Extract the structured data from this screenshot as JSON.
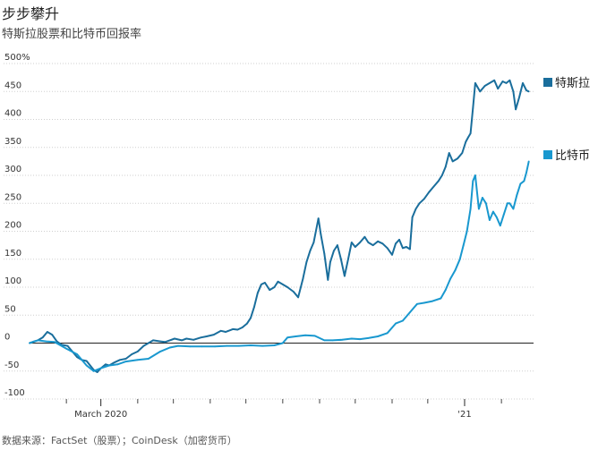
{
  "title": "步步攀升",
  "subtitle": "特斯拉股票和比特币回报率",
  "source": "数据来源：FactSet（股票）；CoinDesk（加密货币）",
  "chart_data": {
    "type": "line",
    "title": "步步攀升",
    "subtitle": "特斯拉股票和比特币回报率",
    "ylim": [
      -100,
      500
    ],
    "y_ticks": [
      500,
      450,
      400,
      350,
      300,
      250,
      200,
      150,
      100,
      50,
      0,
      -50,
      -100
    ],
    "y_tick_labels": [
      "500%",
      "450",
      "400",
      "350",
      "300",
      "250",
      "200",
      "150",
      "100",
      "50",
      "0",
      "-50",
      "-100"
    ],
    "xlim": [
      "2020-01-01",
      "2021-02-28"
    ],
    "x_tick_labels": [
      {
        "date": "2020-03-01",
        "label": "March 2020"
      },
      {
        "date": "2021-01-01",
        "label": "'21"
      }
    ],
    "x_minor_ticks": [
      "2020-02-01",
      "2020-04-01",
      "2020-05-01",
      "2020-06-01",
      "2020-07-01",
      "2020-08-01",
      "2020-09-01",
      "2020-10-01",
      "2020-11-01",
      "2020-12-01",
      "2021-02-01"
    ],
    "gridlines": true,
    "legend_placement": "right",
    "series": [
      {
        "name": "特斯拉",
        "color": "#1a6e9c",
        "points": [
          [
            "2020-01-01",
            0
          ],
          [
            "2020-01-05",
            3
          ],
          [
            "2020-01-08",
            5
          ],
          [
            "2020-01-12",
            10
          ],
          [
            "2020-01-16",
            20
          ],
          [
            "2020-01-20",
            15
          ],
          [
            "2020-01-24",
            3
          ],
          [
            "2020-01-28",
            -3
          ],
          [
            "2020-02-02",
            -5
          ],
          [
            "2020-02-06",
            -15
          ],
          [
            "2020-02-10",
            -25
          ],
          [
            "2020-02-14",
            -30
          ],
          [
            "2020-02-18",
            -32
          ],
          [
            "2020-02-21",
            -40
          ],
          [
            "2020-02-24",
            -48
          ],
          [
            "2020-02-27",
            -52
          ],
          [
            "2020-03-01",
            -45
          ],
          [
            "2020-03-05",
            -38
          ],
          [
            "2020-03-08",
            -40
          ],
          [
            "2020-03-12",
            -35
          ],
          [
            "2020-03-17",
            -30
          ],
          [
            "2020-03-22",
            -28
          ],
          [
            "2020-03-27",
            -20
          ],
          [
            "2020-04-01",
            -15
          ],
          [
            "2020-04-06",
            -5
          ],
          [
            "2020-04-10",
            0
          ],
          [
            "2020-04-14",
            5
          ],
          [
            "2020-04-20",
            3
          ],
          [
            "2020-04-24",
            2
          ],
          [
            "2020-04-28",
            5
          ],
          [
            "2020-05-02",
            8
          ],
          [
            "2020-05-08",
            5
          ],
          [
            "2020-05-12",
            8
          ],
          [
            "2020-05-18",
            6
          ],
          [
            "2020-05-24",
            10
          ],
          [
            "2020-05-29",
            12
          ],
          [
            "2020-06-04",
            15
          ],
          [
            "2020-06-10",
            22
          ],
          [
            "2020-06-14",
            20
          ],
          [
            "2020-06-20",
            25
          ],
          [
            "2020-06-24",
            24
          ],
          [
            "2020-06-28",
            28
          ],
          [
            "2020-07-02",
            35
          ],
          [
            "2020-07-05",
            45
          ],
          [
            "2020-07-08",
            65
          ],
          [
            "2020-07-11",
            90
          ],
          [
            "2020-07-14",
            105
          ],
          [
            "2020-07-17",
            108
          ],
          [
            "2020-07-21",
            95
          ],
          [
            "2020-07-25",
            100
          ],
          [
            "2020-07-28",
            110
          ],
          [
            "2020-08-01",
            105
          ],
          [
            "2020-08-05",
            100
          ],
          [
            "2020-08-10",
            92
          ],
          [
            "2020-08-14",
            82
          ],
          [
            "2020-08-18",
            115
          ],
          [
            "2020-08-21",
            145
          ],
          [
            "2020-08-24",
            165
          ],
          [
            "2020-08-27",
            180
          ],
          [
            "2020-08-31",
            223
          ],
          [
            "2020-09-02",
            195
          ],
          [
            "2020-09-05",
            160
          ],
          [
            "2020-09-08",
            113
          ],
          [
            "2020-09-10",
            145
          ],
          [
            "2020-09-13",
            165
          ],
          [
            "2020-09-16",
            175
          ],
          [
            "2020-09-19",
            150
          ],
          [
            "2020-09-22",
            120
          ],
          [
            "2020-09-25",
            150
          ],
          [
            "2020-09-28",
            180
          ],
          [
            "2020-10-01",
            172
          ],
          [
            "2020-10-05",
            180
          ],
          [
            "2020-10-09",
            190
          ],
          [
            "2020-10-12",
            180
          ],
          [
            "2020-10-16",
            175
          ],
          [
            "2020-10-20",
            182
          ],
          [
            "2020-10-24",
            178
          ],
          [
            "2020-10-28",
            170
          ],
          [
            "2020-11-01",
            158
          ],
          [
            "2020-11-04",
            178
          ],
          [
            "2020-11-07",
            185
          ],
          [
            "2020-11-10",
            170
          ],
          [
            "2020-11-13",
            172
          ],
          [
            "2020-11-16",
            168
          ],
          [
            "2020-11-18",
            225
          ],
          [
            "2020-11-21",
            240
          ],
          [
            "2020-11-24",
            250
          ],
          [
            "2020-11-28",
            258
          ],
          [
            "2020-12-02",
            270
          ],
          [
            "2020-12-06",
            280
          ],
          [
            "2020-12-10",
            290
          ],
          [
            "2020-12-13",
            300
          ],
          [
            "2020-12-16",
            315
          ],
          [
            "2020-12-19",
            340
          ],
          [
            "2020-12-22",
            325
          ],
          [
            "2020-12-26",
            330
          ],
          [
            "2020-12-30",
            340
          ],
          [
            "2021-01-02",
            360
          ],
          [
            "2021-01-04",
            368
          ],
          [
            "2021-01-06",
            375
          ],
          [
            "2021-01-08",
            420
          ],
          [
            "2021-01-10",
            465
          ],
          [
            "2021-01-14",
            450
          ],
          [
            "2021-01-18",
            460
          ],
          [
            "2021-01-22",
            465
          ],
          [
            "2021-01-26",
            470
          ],
          [
            "2021-01-29",
            455
          ],
          [
            "2021-02-02",
            468
          ],
          [
            "2021-02-05",
            465
          ],
          [
            "2021-02-08",
            470
          ],
          [
            "2021-02-11",
            450
          ],
          [
            "2021-02-13",
            418
          ],
          [
            "2021-02-16",
            440
          ],
          [
            "2021-02-19",
            465
          ],
          [
            "2021-02-22",
            452
          ],
          [
            "2021-02-24",
            450
          ]
        ]
      },
      {
        "name": "比特币",
        "color": "#1998cf",
        "points": [
          [
            "2020-01-01",
            0
          ],
          [
            "2020-01-08",
            5
          ],
          [
            "2020-01-15",
            3
          ],
          [
            "2020-01-22",
            2
          ],
          [
            "2020-02-01",
            -10
          ],
          [
            "2020-02-10",
            -20
          ],
          [
            "2020-02-18",
            -40
          ],
          [
            "2020-02-24",
            -50
          ],
          [
            "2020-03-01",
            -45
          ],
          [
            "2020-03-08",
            -40
          ],
          [
            "2020-03-15",
            -38
          ],
          [
            "2020-03-22",
            -33
          ],
          [
            "2020-04-01",
            -30
          ],
          [
            "2020-04-10",
            -28
          ],
          [
            "2020-04-20",
            -15
          ],
          [
            "2020-04-28",
            -8
          ],
          [
            "2020-05-05",
            -5
          ],
          [
            "2020-05-15",
            -6
          ],
          [
            "2020-05-25",
            -6
          ],
          [
            "2020-06-05",
            -6
          ],
          [
            "2020-06-15",
            -5
          ],
          [
            "2020-06-25",
            -5
          ],
          [
            "2020-07-05",
            -4
          ],
          [
            "2020-07-15",
            -5
          ],
          [
            "2020-07-25",
            -4
          ],
          [
            "2020-08-01",
            0
          ],
          [
            "2020-08-05",
            10
          ],
          [
            "2020-08-12",
            12
          ],
          [
            "2020-08-20",
            14
          ],
          [
            "2020-08-28",
            13
          ],
          [
            "2020-09-05",
            5
          ],
          [
            "2020-09-12",
            5
          ],
          [
            "2020-09-20",
            6
          ],
          [
            "2020-09-28",
            8
          ],
          [
            "2020-10-05",
            7
          ],
          [
            "2020-10-12",
            9
          ],
          [
            "2020-10-20",
            12
          ],
          [
            "2020-10-28",
            18
          ],
          [
            "2020-11-04",
            35
          ],
          [
            "2020-11-10",
            40
          ],
          [
            "2020-11-16",
            55
          ],
          [
            "2020-11-22",
            70
          ],
          [
            "2020-11-28",
            72
          ],
          [
            "2020-12-05",
            75
          ],
          [
            "2020-12-12",
            80
          ],
          [
            "2020-12-16",
            95
          ],
          [
            "2020-12-20",
            115
          ],
          [
            "2020-12-24",
            130
          ],
          [
            "2020-12-28",
            150
          ],
          [
            "2020-12-31",
            175
          ],
          [
            "2021-01-03",
            200
          ],
          [
            "2021-01-06",
            240
          ],
          [
            "2021-01-08",
            290
          ],
          [
            "2021-01-10",
            300
          ],
          [
            "2021-01-13",
            240
          ],
          [
            "2021-01-16",
            260
          ],
          [
            "2021-01-19",
            250
          ],
          [
            "2021-01-22",
            220
          ],
          [
            "2021-01-25",
            235
          ],
          [
            "2021-01-28",
            225
          ],
          [
            "2021-01-31",
            210
          ],
          [
            "2021-02-03",
            230
          ],
          [
            "2021-02-06",
            250
          ],
          [
            "2021-02-08",
            250
          ],
          [
            "2021-02-11",
            240
          ],
          [
            "2021-02-14",
            265
          ],
          [
            "2021-02-17",
            285
          ],
          [
            "2021-02-20",
            290
          ],
          [
            "2021-02-22",
            305
          ],
          [
            "2021-02-24",
            325
          ]
        ]
      }
    ]
  }
}
